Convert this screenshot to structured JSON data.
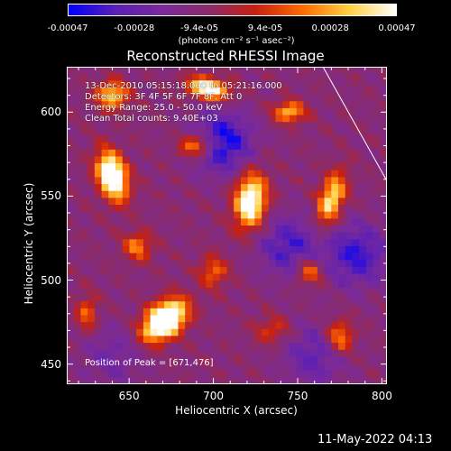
{
  "chart_data": {
    "type": "heatmap",
    "title": "Reconstructed RHESSI Image",
    "xlabel": "Heliocentric X (arcsec)",
    "ylabel": "Heliocentric Y (arcsec)",
    "xlim": [
      613,
      803
    ],
    "ylim": [
      438,
      627
    ],
    "x_ticks": [
      "650",
      "700",
      "750",
      "800"
    ],
    "x_tick_values": [
      650,
      700,
      750,
      800
    ],
    "y_ticks": [
      "450",
      "500",
      "550",
      "600"
    ],
    "y_tick_values": [
      450,
      500,
      550,
      600
    ],
    "colorbar": {
      "tick_labels": [
        "-0.00047",
        "-0.00028",
        "-9.4e-05",
        "9.4e-05",
        "0.00028",
        "0.00047"
      ],
      "tick_values": [
        -0.00047,
        -0.00028,
        -9.4e-05,
        9.4e-05,
        0.00028,
        0.00047
      ],
      "range": [
        -0.00047,
        0.00047
      ],
      "units": "(photons cm⁻² s⁻¹ asec⁻²)"
    },
    "annotations": [
      "13-Dec-2010 05:15:18.000 to 05:21:16.000",
      "Detectors: 3F 4F 5F 6F 7F 8F, Att 0",
      "Energy Range: 25.0 - 50.0 keV",
      "Clean     Total counts: 9.40E+03"
    ],
    "peak_label": "Position of Peak = [671,476]",
    "peak_position": [
      671,
      476
    ],
    "limb_line": [
      [
        765,
        627
      ],
      [
        803,
        559
      ]
    ],
    "colors": {
      "background": "#000000",
      "colormap": [
        "#0000ff",
        "#5a1fb5",
        "#7a2a9a",
        "#8a2b6a",
        "#c82010",
        "#ff6a00",
        "#ffd040",
        "#ffffff"
      ]
    }
  },
  "footer": {
    "timestamp": "11-May-2022 04:13"
  }
}
